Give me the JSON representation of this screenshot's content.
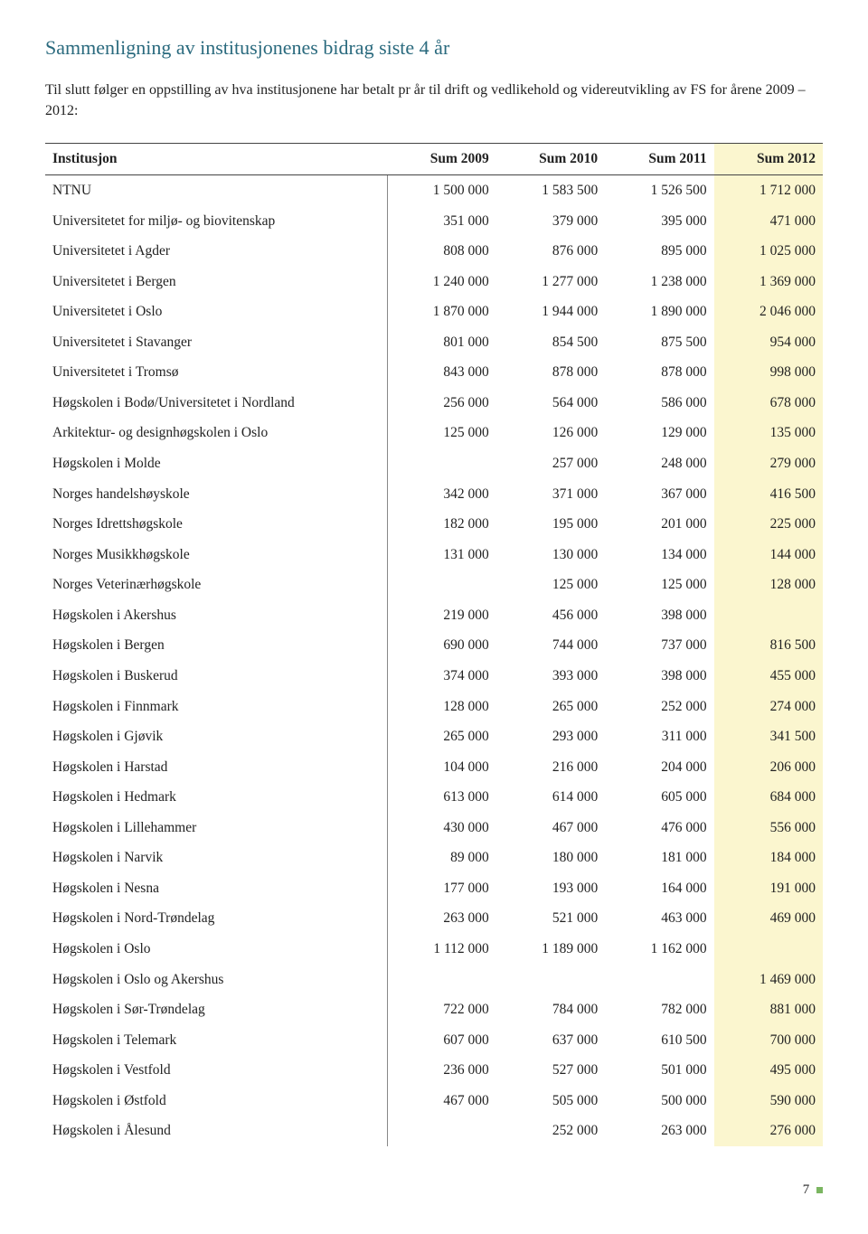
{
  "title": "Sammenligning av institusjonenes bidrag siste 4 år",
  "intro": "Til slutt følger en oppstilling av hva institusjonene har betalt pr år til drift og vedlikehold og videreutvikling av FS for årene 2009 – 2012:",
  "title_color": "#2a6a7e",
  "highlight_color": "#fbf6cf",
  "columns": [
    "Institusjon",
    "Sum 2009",
    "Sum 2010",
    "Sum 2011",
    "Sum 2012"
  ],
  "rows": [
    {
      "name": "NTNU",
      "v": [
        "1 500 000",
        "1 583 500",
        "1 526 500",
        "1 712 000"
      ]
    },
    {
      "name": "Universitetet for miljø- og biovitenskap",
      "v": [
        "351 000",
        "379 000",
        "395 000",
        "471 000"
      ]
    },
    {
      "name": "Universitetet i Agder",
      "v": [
        "808 000",
        "876 000",
        "895 000",
        "1 025 000"
      ]
    },
    {
      "name": "Universitetet i Bergen",
      "v": [
        "1 240 000",
        "1 277 000",
        "1 238 000",
        "1 369 000"
      ]
    },
    {
      "name": "Universitetet i Oslo",
      "v": [
        "1 870 000",
        "1 944 000",
        "1 890 000",
        "2 046 000"
      ]
    },
    {
      "name": "Universitetet i Stavanger",
      "v": [
        "801 000",
        "854 500",
        "875 500",
        "954 000"
      ]
    },
    {
      "name": "Universitetet i Tromsø",
      "v": [
        "843 000",
        "878 000",
        "878 000",
        "998 000"
      ]
    },
    {
      "name": "Høgskolen i Bodø/Universitetet i Nordland",
      "v": [
        "256 000",
        "564 000",
        "586 000",
        "678 000"
      ]
    },
    {
      "name": "Arkitektur- og designhøgskolen i Oslo",
      "v": [
        "125 000",
        "126 000",
        "129 000",
        "135 000"
      ]
    },
    {
      "name": "Høgskolen i Molde",
      "v": [
        "",
        "257 000",
        "248 000",
        "279 000"
      ]
    },
    {
      "name": "Norges handelshøyskole",
      "v": [
        "342 000",
        "371 000",
        "367 000",
        "416 500"
      ]
    },
    {
      "name": "Norges Idrettshøgskole",
      "v": [
        "182 000",
        "195 000",
        "201 000",
        "225 000"
      ]
    },
    {
      "name": "Norges Musikkhøgskole",
      "v": [
        "131 000",
        "130 000",
        "134 000",
        "144 000"
      ]
    },
    {
      "name": "Norges Veterinærhøgskole",
      "v": [
        "",
        "125 000",
        "125 000",
        "128 000"
      ]
    },
    {
      "name": "Høgskolen i Akershus",
      "v": [
        "219 000",
        "456 000",
        "398 000",
        ""
      ]
    },
    {
      "name": "Høgskolen i Bergen",
      "v": [
        "690 000",
        "744 000",
        "737 000",
        "816 500"
      ]
    },
    {
      "name": "Høgskolen i Buskerud",
      "v": [
        "374 000",
        "393 000",
        "398 000",
        "455 000"
      ]
    },
    {
      "name": "Høgskolen i Finnmark",
      "v": [
        "128 000",
        "265 000",
        "252 000",
        "274 000"
      ]
    },
    {
      "name": "Høgskolen i Gjøvik",
      "v": [
        "265 000",
        "293 000",
        "311 000",
        "341 500"
      ]
    },
    {
      "name": "Høgskolen i Harstad",
      "v": [
        "104 000",
        "216 000",
        "204 000",
        "206 000"
      ]
    },
    {
      "name": "Høgskolen i Hedmark",
      "v": [
        "613 000",
        "614 000",
        "605 000",
        "684 000"
      ]
    },
    {
      "name": "Høgskolen i Lillehammer",
      "v": [
        "430 000",
        "467 000",
        "476 000",
        "556 000"
      ]
    },
    {
      "name": "Høgskolen i Narvik",
      "v": [
        "89 000",
        "180 000",
        "181 000",
        "184 000"
      ]
    },
    {
      "name": "Høgskolen i Nesna",
      "v": [
        "177 000",
        "193 000",
        "164 000",
        "191 000"
      ]
    },
    {
      "name": "Høgskolen i Nord-Trøndelag",
      "v": [
        "263 000",
        "521 000",
        "463 000",
        "469 000"
      ]
    },
    {
      "name": "Høgskolen i Oslo",
      "v": [
        "1 112 000",
        "1 189 000",
        "1 162 000",
        ""
      ]
    },
    {
      "name": "Høgskolen i Oslo og Akershus",
      "v": [
        "",
        "",
        "",
        "1 469 000"
      ]
    },
    {
      "name": "Høgskolen i Sør-Trøndelag",
      "v": [
        "722 000",
        "784 000",
        "782 000",
        "881 000"
      ]
    },
    {
      "name": "Høgskolen i Telemark",
      "v": [
        "607 000",
        "637 000",
        "610 500",
        "700 000"
      ]
    },
    {
      "name": "Høgskolen i Vestfold",
      "v": [
        "236 000",
        "527 000",
        "501 000",
        "495 000"
      ]
    },
    {
      "name": "Høgskolen i Østfold",
      "v": [
        "467 000",
        "505 000",
        "500 000",
        "590 000"
      ]
    },
    {
      "name": "Høgskolen i Ålesund",
      "v": [
        "",
        "252 000",
        "263 000",
        "276 000"
      ]
    }
  ],
  "page_number": "7"
}
